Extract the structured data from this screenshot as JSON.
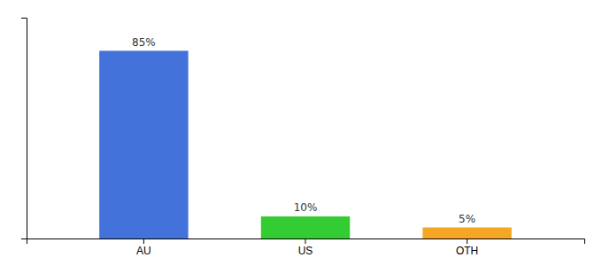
{
  "chart_data": {
    "type": "bar",
    "categories": [
      "AU",
      "US",
      "OTH"
    ],
    "values": [
      85,
      10,
      5
    ],
    "colors": [
      "#4472db",
      "#33cc33",
      "#f5a623"
    ],
    "value_labels": [
      "85%",
      "10%",
      "5%"
    ],
    "data_labels": true,
    "ylim": [
      0,
      100
    ],
    "tick_labels": "x",
    "grid": false
  }
}
